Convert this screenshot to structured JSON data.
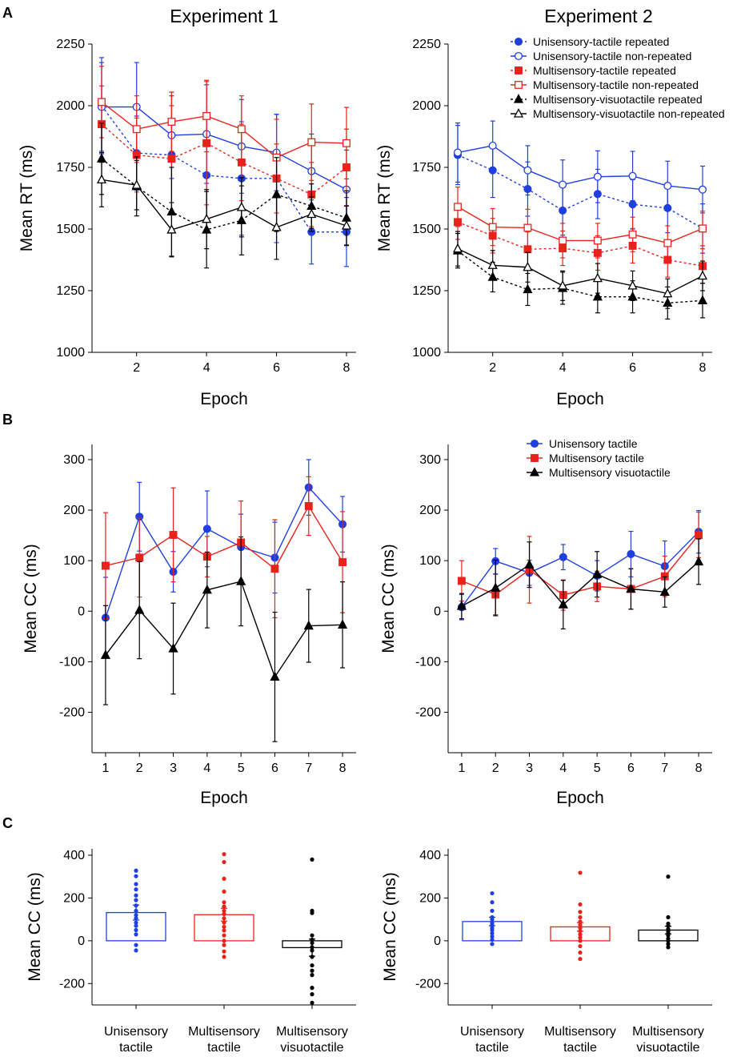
{
  "colors": {
    "blue": "#1f3fe0",
    "red": "#e8231b",
    "black": "#000000"
  },
  "panel_labels": [
    "A",
    "B",
    "C"
  ],
  "legend_A": [
    "Unisensory-tactile repeated",
    "Unisensory-tactile non-repeated",
    "Multisensory-tactile repeated",
    "Multisensory-tactile non-repeated",
    "Multisensory-visuotactile repeated",
    "Multisensory-visuotactile non-repeated"
  ],
  "legend_B": [
    "Unisensory tactile",
    "Multisensory tactile",
    "Multisensory visuotactile"
  ],
  "chart_data": [
    {
      "id": "A1",
      "type": "line",
      "title": "Experiment 1",
      "xlabel": "Epoch",
      "ylabel": "Mean RT (ms)",
      "xlim": [
        1,
        8
      ],
      "ylim": [
        1000,
        2250
      ],
      "xticks": [
        2,
        4,
        6,
        8
      ],
      "yticks": [
        1000,
        1250,
        1500,
        1750,
        2000,
        2250
      ],
      "x": [
        1,
        2,
        3,
        4,
        5,
        6,
        7,
        8
      ],
      "series": [
        {
          "name": "Unisensory-tactile repeated",
          "color": "blue",
          "marker": "circle",
          "filled": true,
          "dashed": true,
          "values": [
            2000,
            1808,
            1800,
            1718,
            1705,
            1705,
            1488,
            1488
          ],
          "err": [
            195,
            150,
            240,
            230,
            230,
            260,
            130,
            140
          ]
        },
        {
          "name": "Unisensory-tactile non-repeated",
          "color": "blue",
          "marker": "circle",
          "filled": false,
          "dashed": false,
          "values": [
            1995,
            1995,
            1880,
            1885,
            1835,
            1810,
            1735,
            1660
          ],
          "err": [
            180,
            180,
            175,
            200,
            190,
            155,
            150,
            160
          ]
        },
        {
          "name": "Multisensory-tactile repeated",
          "color": "red",
          "marker": "square",
          "filled": true,
          "dashed": true,
          "values": [
            1925,
            1800,
            1785,
            1848,
            1770,
            1705,
            1640,
            1750
          ],
          "err": [
            155,
            150,
            215,
            250,
            155,
            140,
            130,
            155
          ]
        },
        {
          "name": "Multisensory-tactile non-repeated",
          "color": "red",
          "marker": "square",
          "filled": false,
          "dashed": false,
          "values": [
            2015,
            1905,
            1935,
            1958,
            1905,
            1790,
            1852,
            1848
          ],
          "err": [
            145,
            135,
            120,
            145,
            135,
            155,
            155,
            145
          ]
        },
        {
          "name": "Multisensory-visuotactile repeated",
          "color": "black",
          "marker": "triangle",
          "filled": true,
          "dashed": true,
          "values": [
            1785,
            1673,
            1570,
            1497,
            1535,
            1640,
            1593,
            1545
          ],
          "err": [
            145,
            120,
            180,
            155,
            140,
            150,
            90,
            110
          ]
        },
        {
          "name": "Multisensory-visuotactile non-repeated",
          "color": "black",
          "marker": "triangle",
          "filled": false,
          "dashed": false,
          "values": [
            1700,
            1678,
            1497,
            1540,
            1588,
            1507,
            1560,
            1513
          ],
          "err": [
            110,
            100,
            110,
            120,
            120,
            130,
            70,
            80
          ]
        }
      ]
    },
    {
      "id": "A2",
      "type": "line",
      "title": "Experiment 2",
      "xlabel": "Epoch",
      "ylabel": "Mean RT (ms)",
      "xlim": [
        1,
        8
      ],
      "ylim": [
        1000,
        2250
      ],
      "xticks": [
        2,
        4,
        6,
        8
      ],
      "yticks": [
        1000,
        1250,
        1500,
        1750,
        2000,
        2250
      ],
      "x": [
        1,
        2,
        3,
        4,
        5,
        6,
        7,
        8
      ],
      "series": [
        {
          "name": "Unisensory-tactile repeated",
          "color": "blue",
          "marker": "circle",
          "filled": true,
          "dashed": true,
          "values": [
            1800,
            1738,
            1662,
            1575,
            1642,
            1600,
            1585,
            1502
          ],
          "err": [
            120,
            110,
            110,
            100,
            100,
            100,
            100,
            100
          ]
        },
        {
          "name": "Unisensory-tactile non-repeated",
          "color": "blue",
          "marker": "circle",
          "filled": false,
          "dashed": false,
          "values": [
            1810,
            1838,
            1738,
            1680,
            1712,
            1715,
            1675,
            1660
          ],
          "err": [
            120,
            100,
            100,
            100,
            105,
            100,
            100,
            95
          ]
        },
        {
          "name": "Multisensory-tactile repeated",
          "color": "red",
          "marker": "square",
          "filled": true,
          "dashed": true,
          "values": [
            1528,
            1473,
            1418,
            1422,
            1403,
            1432,
            1375,
            1350
          ],
          "err": [
            70,
            70,
            70,
            70,
            70,
            70,
            70,
            70
          ]
        },
        {
          "name": "Multisensory-tactile non-repeated",
          "color": "red",
          "marker": "square",
          "filled": false,
          "dashed": false,
          "values": [
            1590,
            1508,
            1505,
            1453,
            1453,
            1478,
            1443,
            1502
          ],
          "err": [
            80,
            75,
            75,
            70,
            70,
            70,
            70,
            70
          ]
        },
        {
          "name": "Multisensory-visuotactile repeated",
          "color": "black",
          "marker": "triangle",
          "filled": true,
          "dashed": true,
          "values": [
            1412,
            1305,
            1255,
            1260,
            1225,
            1225,
            1200,
            1210
          ],
          "err": [
            70,
            60,
            65,
            65,
            65,
            65,
            65,
            70
          ]
        },
        {
          "name": "Multisensory-visuotactile non-repeated",
          "color": "black",
          "marker": "triangle",
          "filled": false,
          "dashed": false,
          "values": [
            1420,
            1353,
            1345,
            1270,
            1300,
            1270,
            1238,
            1310
          ],
          "err": [
            70,
            60,
            60,
            60,
            60,
            60,
            60,
            60
          ]
        }
      ]
    },
    {
      "id": "B1",
      "type": "line",
      "title": "",
      "xlabel": "Epoch",
      "ylabel": "Mean CC (ms)",
      "xlim": [
        0.6,
        8.4
      ],
      "ylim": [
        -280,
        330
      ],
      "xticks": [
        1,
        2,
        3,
        4,
        5,
        6,
        7,
        8
      ],
      "yticks": [
        -200,
        -100,
        0,
        100,
        200,
        300
      ],
      "x": [
        1,
        2,
        3,
        4,
        5,
        6,
        7,
        8
      ],
      "series": [
        {
          "name": "Unisensory tactile",
          "color": "blue",
          "marker": "circle",
          "filled": true,
          "dashed": false,
          "values": [
            -13,
            187,
            78,
            163,
            127,
            106,
            245,
            172
          ],
          "err": [
            80,
            68,
            40,
            75,
            65,
            70,
            55,
            55
          ]
        },
        {
          "name": "Multisensory tactile",
          "color": "red",
          "marker": "square",
          "filled": true,
          "dashed": false,
          "values": [
            90,
            106,
            151,
            108,
            136,
            84,
            208,
            97
          ],
          "err": [
            105,
            78,
            93,
            40,
            82,
            97,
            58,
            100
          ]
        },
        {
          "name": "Multisensory visuotactile",
          "color": "black",
          "marker": "triangle",
          "filled": true,
          "dashed": false,
          "values": [
            -87,
            2,
            -74,
            42,
            59,
            -130,
            -29,
            -27
          ],
          "err": [
            98,
            96,
            90,
            75,
            88,
            128,
            72,
            85
          ]
        }
      ]
    },
    {
      "id": "B2",
      "type": "line",
      "title": "",
      "xlabel": "Epoch",
      "ylabel": "Mean CC (ms)",
      "xlim": [
        0.6,
        8.4
      ],
      "ylim": [
        -280,
        330
      ],
      "xticks": [
        1,
        2,
        3,
        4,
        5,
        6,
        7,
        8
      ],
      "yticks": [
        -200,
        -100,
        0,
        100,
        200,
        300
      ],
      "x": [
        1,
        2,
        3,
        4,
        5,
        6,
        7,
        8
      ],
      "series": [
        {
          "name": "Unisensory tactile",
          "color": "blue",
          "marker": "circle",
          "filled": true,
          "dashed": false,
          "values": [
            8,
            99,
            76,
            107,
            70,
            113,
            89,
            157
          ],
          "err": [
            25,
            25,
            25,
            25,
            30,
            45,
            50,
            42
          ]
        },
        {
          "name": "Multisensory tactile",
          "color": "red",
          "marker": "square",
          "filled": true,
          "dashed": false,
          "values": [
            60,
            33,
            82,
            32,
            49,
            44,
            69,
            151
          ],
          "err": [
            40,
            40,
            66,
            30,
            30,
            40,
            40,
            45
          ]
        },
        {
          "name": "Multisensory visuotactile",
          "color": "black",
          "marker": "triangle",
          "filled": true,
          "dashed": false,
          "values": [
            10,
            46,
            92,
            13,
            73,
            44,
            38,
            98
          ],
          "err": [
            25,
            55,
            45,
            48,
            45,
            40,
            30,
            45
          ]
        }
      ]
    },
    {
      "id": "C1",
      "type": "bar",
      "title": "",
      "xlabel": "",
      "ylabel": "Mean CC (ms)",
      "ylim": [
        -300,
        430
      ],
      "yticks": [
        -200,
        0,
        200,
        400
      ],
      "categories": [
        [
          "Unisensory",
          "tactile"
        ],
        [
          "Multisensory",
          "tactile"
        ],
        [
          "Multisensory",
          "visuotactile"
        ]
      ],
      "values": [
        132,
        122,
        -32
      ],
      "err": [
        35,
        30,
        40
      ],
      "bar_colors": [
        "blue",
        "red",
        "black"
      ],
      "points": [
        [
          328,
          302,
          265,
          240,
          212,
          190,
          165,
          140,
          120,
          105,
          85,
          70,
          50,
          30,
          -20,
          -45
        ],
        [
          405,
          368,
          290,
          230,
          180,
          160,
          140,
          125,
          105,
          85,
          65,
          48,
          25,
          0,
          -20,
          -50,
          -75
        ],
        [
          380,
          140,
          130,
          25,
          5,
          -10,
          -30,
          -45,
          -75,
          -115,
          -140,
          -160,
          -220,
          -250,
          -290
        ]
      ]
    },
    {
      "id": "C2",
      "type": "bar",
      "title": "",
      "xlabel": "",
      "ylabel": "Mean CC (ms)",
      "ylim": [
        -300,
        430
      ],
      "yticks": [
        -200,
        0,
        200,
        400
      ],
      "categories": [
        [
          "Unisensory",
          "tactile"
        ],
        [
          "Multisensory",
          "tactile"
        ],
        [
          "Multisensory",
          "visuotactile"
        ]
      ],
      "values": [
        90,
        65,
        50
      ],
      "err": [
        20,
        20,
        18
      ],
      "bar_colors": [
        "blue",
        "red",
        "black"
      ],
      "points": [
        [
          222,
          180,
          140,
          110,
          100,
          85,
          75,
          60,
          50,
          35,
          20,
          5,
          -15
        ],
        [
          318,
          170,
          135,
          110,
          90,
          75,
          60,
          45,
          30,
          15,
          0,
          -25,
          -55,
          -85
        ],
        [
          300,
          110,
          80,
          70,
          55,
          45,
          35,
          25,
          10,
          0,
          -15,
          -30
        ]
      ]
    }
  ]
}
